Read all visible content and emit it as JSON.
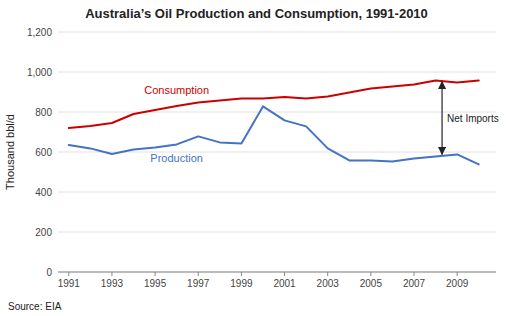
{
  "chart_data": {
    "type": "line",
    "title": "Australia’s Oil Production and Consumption, 1991-2010",
    "ylabel": "Thousand bbl/d",
    "source": "Source: EIA",
    "x": [
      1991,
      1992,
      1993,
      1994,
      1995,
      1996,
      1997,
      1998,
      1999,
      2000,
      2001,
      2002,
      2003,
      2004,
      2005,
      2006,
      2007,
      2008,
      2009,
      2010
    ],
    "series": [
      {
        "name": "Consumption",
        "color": "#cc0000",
        "values": [
          720,
          730,
          745,
          790,
          810,
          830,
          848,
          858,
          868,
          868,
          875,
          868,
          878,
          898,
          918,
          928,
          938,
          958,
          948,
          958
        ]
      },
      {
        "name": "Production",
        "color": "#4472c4",
        "values": [
          635,
          618,
          590,
          612,
          622,
          638,
          678,
          648,
          642,
          828,
          758,
          728,
          618,
          558,
          558,
          552,
          568,
          578,
          588,
          538
        ]
      }
    ],
    "annotations": [
      {
        "text": "Net Imports",
        "x": 2008.3,
        "y": [
          588,
          952
        ]
      }
    ],
    "xlim": [
      1990.5,
      2010.8
    ],
    "xticks": [
      1991,
      1993,
      1995,
      1997,
      1999,
      2001,
      2003,
      2005,
      2007,
      2009
    ],
    "ylim": [
      0,
      1200
    ],
    "yticks": [
      0,
      200,
      400,
      600,
      800,
      {
        "value": 1000,
        "label": "1,000"
      },
      {
        "value": 1200,
        "label": "1,200"
      }
    ],
    "grid": true
  }
}
